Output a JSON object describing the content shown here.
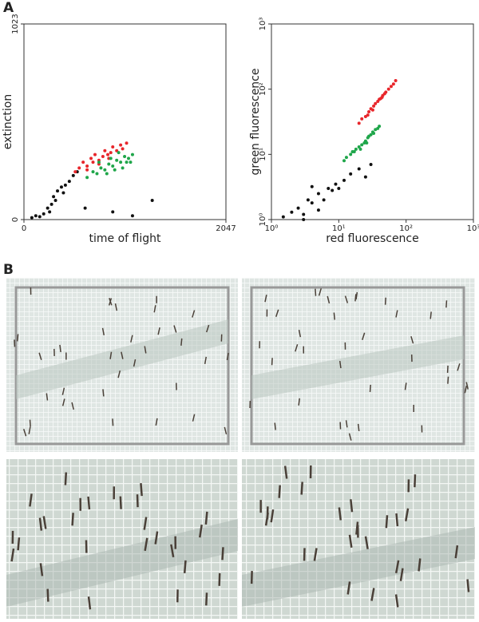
{
  "panel_labels": [
    "A",
    "B"
  ],
  "chart_data": [
    {
      "type": "scatter",
      "x_label": "time of flight",
      "y_label": "extinction",
      "xlim": [
        0,
        2047
      ],
      "ylim": [
        0,
        1023
      ],
      "xticks": [
        0,
        2047
      ],
      "yticks": [
        0,
        1023
      ],
      "log": false,
      "series": [
        {
          "color": "#111111",
          "x": [
            80,
            120,
            160,
            200,
            240,
            280,
            300,
            340,
            380,
            420,
            460,
            500,
            540,
            260,
            320,
            400,
            620,
            900,
            1300,
            1100
          ],
          "values": [
            10,
            20,
            15,
            30,
            60,
            80,
            120,
            150,
            170,
            180,
            200,
            230,
            250,
            40,
            100,
            140,
            60,
            40,
            100,
            20
          ]
        },
        {
          "color": "#e8262b",
          "x": [
            520,
            560,
            600,
            640,
            680,
            700,
            720,
            760,
            800,
            820,
            850,
            880,
            900,
            940,
            980,
            1000,
            1040,
            640,
            760,
            860
          ],
          "values": [
            250,
            270,
            300,
            280,
            320,
            300,
            340,
            310,
            330,
            360,
            340,
            350,
            380,
            360,
            390,
            370,
            400,
            260,
            290,
            320
          ]
        },
        {
          "color": "#1fa64a",
          "x": [
            640,
            700,
            740,
            780,
            820,
            860,
            900,
            940,
            980,
            1020,
            1060,
            1100,
            760,
            880,
            960,
            1000,
            1040,
            840,
            920,
            1080
          ],
          "values": [
            220,
            250,
            240,
            270,
            260,
            290,
            280,
            310,
            300,
            330,
            320,
            340,
            300,
            320,
            350,
            270,
            300,
            240,
            260,
            300
          ]
        }
      ]
    },
    {
      "type": "scatter",
      "x_label": "red fluorescence",
      "y_label": "green fluorescence",
      "xlim": [
        1,
        1000
      ],
      "ylim": [
        1,
        1000
      ],
      "log": true,
      "xticks": [
        {
          "value": 1,
          "label": "10⁰"
        },
        {
          "value": 10,
          "label": "10¹"
        },
        {
          "value": 100,
          "label": "10²"
        },
        {
          "value": 1000,
          "label": "10³"
        }
      ],
      "yticks": [
        {
          "value": 1,
          "label": "10⁰"
        },
        {
          "value": 10,
          "label": "10¹"
        },
        {
          "value": 100,
          "label": "10²"
        },
        {
          "value": 1000,
          "label": "10³"
        }
      ],
      "series": [
        {
          "color": "#111111",
          "x": [
            1.5,
            2,
            2.5,
            3,
            3.5,
            4,
            5,
            6,
            7,
            8,
            9,
            10,
            12,
            3,
            5,
            15,
            20,
            25,
            30,
            4
          ],
          "values": [
            1.1,
            1.3,
            1.5,
            1.2,
            2,
            1.8,
            2.5,
            2,
            3,
            2.8,
            3.5,
            3,
            4,
            1,
            1.4,
            5,
            6,
            4.5,
            7,
            3.2
          ]
        },
        {
          "color": "#e8262b",
          "x": [
            20,
            22,
            25,
            28,
            30,
            32,
            35,
            38,
            40,
            42,
            45,
            50,
            55,
            60,
            65,
            70,
            33,
            44,
            27,
            48
          ],
          "values": [
            30,
            35,
            38,
            45,
            50,
            48,
            60,
            65,
            70,
            72,
            80,
            90,
            100,
            110,
            120,
            135,
            55,
            75,
            40,
            85
          ]
        },
        {
          "color": "#1fa64a",
          "x": [
            12,
            13,
            15,
            16,
            18,
            20,
            22,
            24,
            25,
            27,
            28,
            30,
            32,
            35,
            38,
            40,
            21,
            26,
            17,
            33
          ],
          "values": [
            8,
            9,
            10,
            11,
            12,
            13,
            14,
            15,
            16,
            18,
            19,
            20,
            22,
            24,
            25,
            27,
            12,
            15,
            11,
            21
          ]
        }
      ]
    }
  ]
}
